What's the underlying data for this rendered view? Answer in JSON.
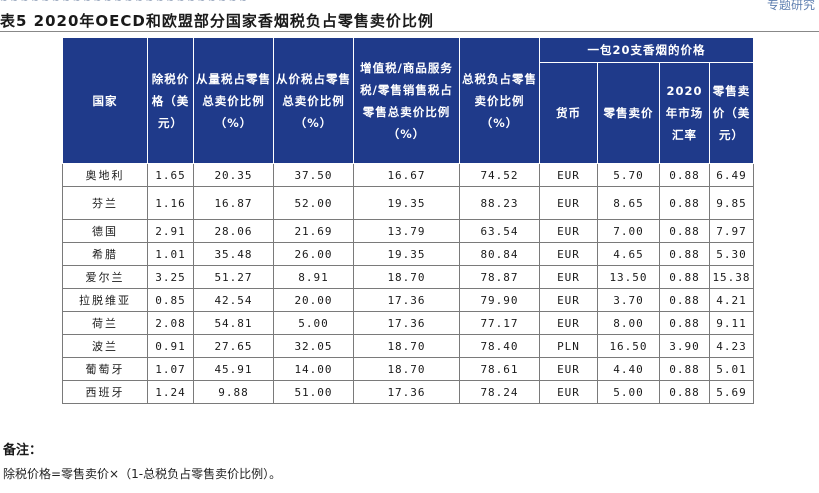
{
  "header": {
    "left_text": "~ ~ ~ ~ ~ ~ ~ ~ ~ ~ ~ ~ ~ ~ ~ ~ ~ ~ ~ ~ ~ ~ ~ ~",
    "right_text": "专题研究"
  },
  "table_title": "表5  2020年OECD和欧盟部分国家香烟税负占零售卖价比例",
  "columns": {
    "country": "国家",
    "pretax_price": "除税价格（美元）",
    "specific_tax_share": "从量税占零售总卖价比例（%）",
    "advalorem_tax_share": "从价税占零售总卖价比例（%）",
    "vat_share": "增值税/商品服务税/零售销售税占零售总卖价比例（%）",
    "total_tax_share": "总税负占零售卖价比例（%）",
    "pack_group": "一包20支香烟的价格",
    "currency": "货币",
    "retail_price": "零售卖价",
    "fx_rate": "2020年市场汇率",
    "retail_price_usd": "零售卖价（美元）"
  },
  "rows": [
    {
      "country": "奥地利",
      "pretax": "1.65",
      "specific": "20.35",
      "advalorem": "37.50",
      "vat": "16.67",
      "total": "74.52",
      "currency": "EUR",
      "price": "5.70",
      "fx": "0.88",
      "usd": "6.49"
    },
    {
      "country": "芬兰",
      "pretax": "1.16",
      "specific": "16.87",
      "advalorem": "52.00",
      "vat": "19.35",
      "total": "88.23",
      "currency": "EUR",
      "price": "8.65",
      "fx": "0.88",
      "usd": "9.85"
    },
    {
      "country": "德国",
      "pretax": "2.91",
      "specific": "28.06",
      "advalorem": "21.69",
      "vat": "13.79",
      "total": "63.54",
      "currency": "EUR",
      "price": "7.00",
      "fx": "0.88",
      "usd": "7.97"
    },
    {
      "country": "希腊",
      "pretax": "1.01",
      "specific": "35.48",
      "advalorem": "26.00",
      "vat": "19.35",
      "total": "80.84",
      "currency": "EUR",
      "price": "4.65",
      "fx": "0.88",
      "usd": "5.30"
    },
    {
      "country": "爱尔兰",
      "pretax": "3.25",
      "specific": "51.27",
      "advalorem": "8.91",
      "vat": "18.70",
      "total": "78.87",
      "currency": "EUR",
      "price": "13.50",
      "fx": "0.88",
      "usd": "15.38"
    },
    {
      "country": "拉脱维亚",
      "pretax": "0.85",
      "specific": "42.54",
      "advalorem": "20.00",
      "vat": "17.36",
      "total": "79.90",
      "currency": "EUR",
      "price": "3.70",
      "fx": "0.88",
      "usd": "4.21"
    },
    {
      "country": "荷兰",
      "pretax": "2.08",
      "specific": "54.81",
      "advalorem": "5.00",
      "vat": "17.36",
      "total": "77.17",
      "currency": "EUR",
      "price": "8.00",
      "fx": "0.88",
      "usd": "9.11"
    },
    {
      "country": "波兰",
      "pretax": "0.91",
      "specific": "27.65",
      "advalorem": "32.05",
      "vat": "18.70",
      "total": "78.40",
      "currency": "PLN",
      "price": "16.50",
      "fx": "3.90",
      "usd": "4.23"
    },
    {
      "country": "葡萄牙",
      "pretax": "1.07",
      "specific": "45.91",
      "advalorem": "14.00",
      "vat": "18.70",
      "total": "78.61",
      "currency": "EUR",
      "price": "4.40",
      "fx": "0.88",
      "usd": "5.01"
    },
    {
      "country": "西班牙",
      "pretax": "1.24",
      "specific": "9.88",
      "advalorem": "51.00",
      "vat": "17.36",
      "total": "78.24",
      "currency": "EUR",
      "price": "5.00",
      "fx": "0.88",
      "usd": "5.69"
    }
  ],
  "notes": {
    "title": "备注：",
    "text": "除税价格=零售卖价×（1-总税负占零售卖价比例）。"
  }
}
